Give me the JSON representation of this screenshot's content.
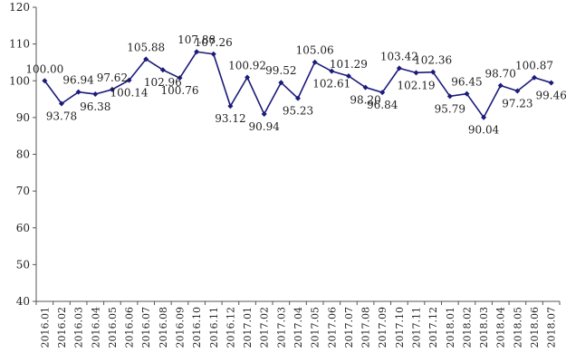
{
  "chart_data": {
    "type": "line",
    "title": "",
    "xlabel": "",
    "ylabel": "",
    "ylim": [
      40,
      120
    ],
    "yticks": [
      "40",
      "50",
      "60",
      "70",
      "80",
      "90",
      "100",
      "110",
      "120"
    ],
    "grid": false,
    "legend": "none",
    "line_color": "#1b1b7a",
    "categories": [
      "2016.01",
      "2016.02",
      "2016.03",
      "2016.04",
      "2016.05",
      "2016.06",
      "2016.07",
      "2016.08",
      "2016.09",
      "2016.10",
      "2016.11",
      "2016.12",
      "2017.01",
      "2017.02",
      "2017.03",
      "2017.04",
      "2017.05",
      "2017.06",
      "2017.07",
      "2017.08",
      "2017.09",
      "2017.10",
      "2017.11",
      "2017.12",
      "2018.01",
      "2018.02",
      "2018.03",
      "2018.04",
      "2018.05",
      "2018.06",
      "2018.07"
    ],
    "values": [
      100.0,
      93.78,
      96.94,
      96.38,
      97.62,
      100.14,
      105.88,
      102.96,
      100.76,
      107.88,
      107.26,
      93.12,
      100.92,
      90.94,
      99.52,
      95.23,
      105.06,
      102.61,
      101.29,
      98.2,
      96.84,
      103.42,
      102.19,
      102.36,
      95.79,
      96.45,
      90.04,
      98.7,
      97.23,
      100.87,
      99.46
    ],
    "labels": [
      "100.00",
      "93.78",
      "96.94",
      "96.38",
      "97.62",
      "100.14",
      "105.88",
      "102.96",
      "100.76",
      "107.88",
      "107.26",
      "93.12",
      "100.92",
      "90.94",
      "99.52",
      "95.23",
      "105.06",
      "102.61",
      "101.29",
      "98.20",
      "96.84",
      "103.42",
      "102.19",
      "102.36",
      "95.79",
      "96.45",
      "90.04",
      "98.70",
      "97.23",
      "100.87",
      "99.46"
    ]
  }
}
